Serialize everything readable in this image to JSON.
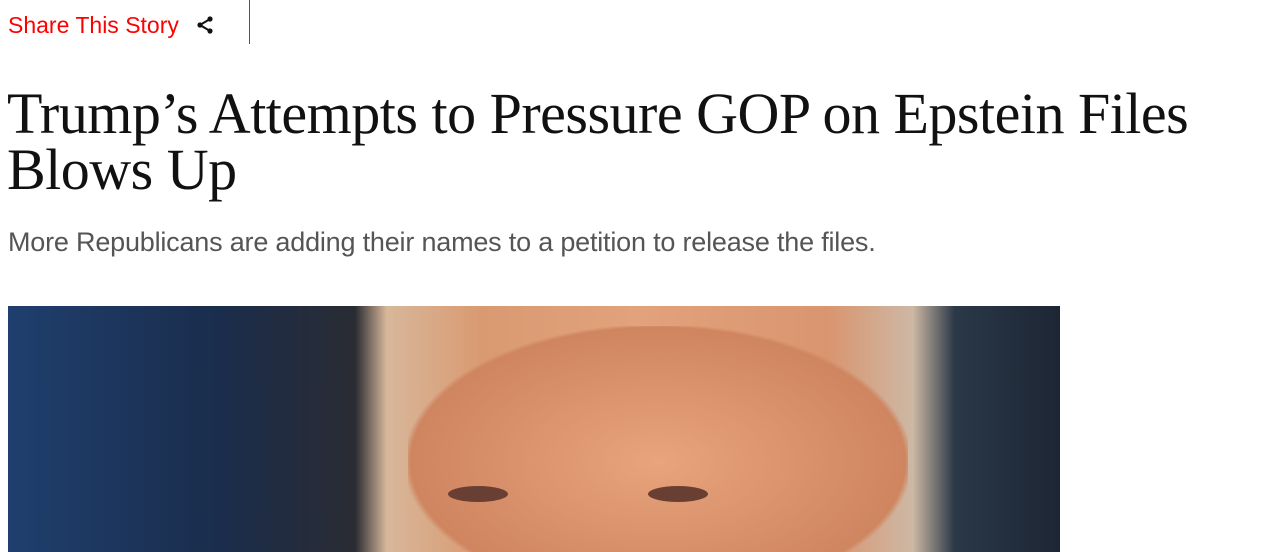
{
  "share": {
    "label": "Share This Story",
    "icon": "share-icon",
    "color": "#ff0000"
  },
  "article": {
    "headline": "Trump’s Attempts to Pressure GOP on Epstein Files Blows Up",
    "dek": "More Republicans are adding their names to a petition to release the files."
  }
}
